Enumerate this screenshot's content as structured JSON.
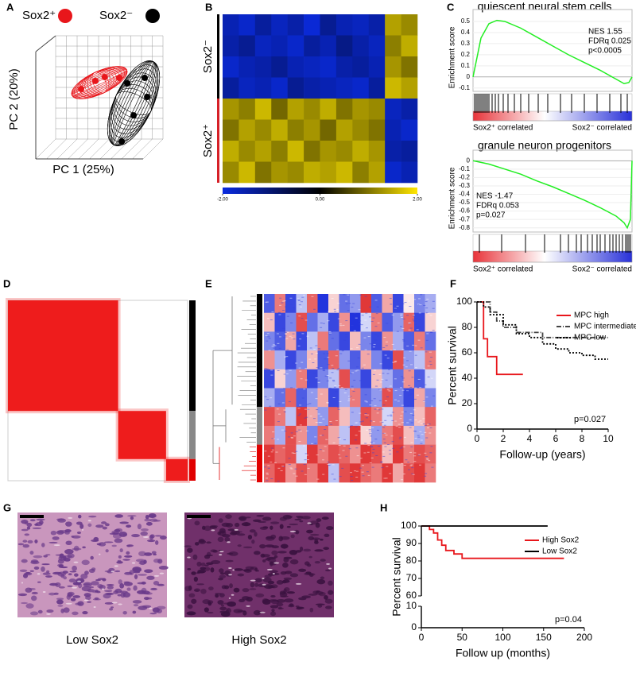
{
  "chart_data": [
    {
      "panel": "A",
      "type": "scatter",
      "x_label": "PC 1 (25%)",
      "y_label": "PC 2 (20%)",
      "xlim": [
        -230,
        230
      ],
      "ylim": [
        -230,
        230
      ],
      "series": [
        {
          "name": "Sox2⁺",
          "color": "#e8161b",
          "x": [
            -92,
            -33,
            6,
            66
          ],
          "values": [
            10,
            43,
            59,
            56
          ]
        },
        {
          "name": "Sox2⁻",
          "color": "#000000",
          "x": [
            99,
            171,
            181,
            125,
            76
          ],
          "values": [
            33,
            56,
            -23,
            -99,
            -207
          ]
        }
      ]
    },
    {
      "panel": "B",
      "type": "heatmap",
      "clim": [
        -2,
        2
      ],
      "colors": [
        "#0a2be0",
        "#000000",
        "#ffe600"
      ],
      "row_groups": [
        {
          "label": "Sox2⁻",
          "rows": 4,
          "color": "#000000"
        },
        {
          "label": "Sox2⁺",
          "rows": 4,
          "color": "#d62027"
        }
      ],
      "matrix": [
        [
          -1.6,
          -1.8,
          -1.4,
          -1.7,
          -1.5,
          -1.9,
          -1.3,
          -1.6,
          -1.7,
          -1.5,
          1.4,
          1.2
        ],
        [
          -1.5,
          -1.3,
          -1.7,
          -1.6,
          -1.8,
          -1.4,
          -1.6,
          -1.2,
          -1.5,
          -1.7,
          1.1,
          1.5
        ],
        [
          -1.8,
          -1.6,
          -1.5,
          -1.3,
          -1.6,
          -1.7,
          -1.8,
          -1.5,
          -1.4,
          -1.6,
          1.3,
          1.0
        ],
        [
          -1.4,
          -1.7,
          -1.6,
          -1.8,
          -1.3,
          -1.5,
          -1.6,
          -1.7,
          -1.8,
          -1.4,
          1.6,
          1.4
        ],
        [
          1.3,
          1.1,
          1.6,
          0.9,
          1.4,
          1.2,
          1.5,
          1.0,
          1.3,
          1.2,
          -1.7,
          -1.5
        ],
        [
          1.0,
          1.4,
          1.2,
          1.5,
          1.1,
          1.3,
          0.9,
          1.4,
          1.2,
          1.0,
          -1.6,
          -1.8
        ],
        [
          1.5,
          1.2,
          1.4,
          1.1,
          1.6,
          1.0,
          1.3,
          1.2,
          1.5,
          1.3,
          -1.5,
          -1.4
        ],
        [
          1.2,
          1.6,
          1.0,
          1.3,
          1.2,
          1.5,
          1.4,
          1.6,
          1.1,
          1.4,
          -1.8,
          -1.6
        ]
      ],
      "colorbar_ticks": [
        {
          "value": -2,
          "label": "-2.00"
        },
        {
          "value": 0,
          "label": "0.00"
        },
        {
          "value": 2,
          "label": "2.00"
        }
      ]
    },
    {
      "panel": "C",
      "type": "enrichment",
      "title": "quiescent neural stem cells",
      "y_label": "Enrichment score",
      "color": "#22ee22",
      "xlim": [
        0,
        1
      ],
      "ylim": [
        -0.13,
        0.55
      ],
      "yticks": [
        0.5,
        0.4,
        0.3,
        0.2,
        0.1,
        0,
        -0.1
      ],
      "x": [
        0,
        0.05,
        0.1,
        0.15,
        0.2,
        0.3,
        0.4,
        0.5,
        0.6,
        0.7,
        0.8,
        0.9,
        0.95,
        0.98,
        1.0
      ],
      "values": [
        0,
        0.35,
        0.48,
        0.51,
        0.5,
        0.44,
        0.36,
        0.28,
        0.2,
        0.13,
        0.06,
        -0.02,
        -0.06,
        -0.05,
        0
      ],
      "annotations": [
        "NES 1.55",
        "FDRq 0.025",
        "p<0.0005"
      ],
      "hits": [
        0.01,
        0.02,
        0.03,
        0.04,
        0.05,
        0.06,
        0.07,
        0.08,
        0.09,
        0.1,
        0.12,
        0.14,
        0.16,
        0.19,
        0.22,
        0.26,
        0.3,
        0.35,
        0.41,
        0.47,
        0.55,
        0.62,
        0.7,
        0.78,
        0.86,
        0.93,
        0.97
      ],
      "low_label": "Sox2⁺ correlated",
      "high_label": "Sox2⁻ correlated"
    },
    {
      "type": "enrichment",
      "title": "granule neuron progenitors",
      "y_label": "Enrichment score",
      "color": "#22ee22",
      "xlim": [
        0,
        1
      ],
      "ylim": [
        -0.85,
        0.05
      ],
      "yticks": [
        0,
        -0.1,
        -0.2,
        -0.3,
        -0.4,
        -0.5,
        -0.6,
        -0.7,
        -0.8
      ],
      "x": [
        0,
        0.1,
        0.2,
        0.3,
        0.4,
        0.5,
        0.6,
        0.7,
        0.8,
        0.9,
        0.95,
        0.97,
        0.99,
        1.0
      ],
      "values": [
        0,
        -0.04,
        -0.1,
        -0.16,
        -0.24,
        -0.31,
        -0.39,
        -0.47,
        -0.56,
        -0.66,
        -0.74,
        -0.8,
        -0.7,
        0
      ],
      "annotations": [
        "NES -1.47",
        "FDRq 0.053",
        "p=0.027"
      ],
      "hits": [
        0.04,
        0.18,
        0.33,
        0.45,
        0.55,
        0.6,
        0.65,
        0.68,
        0.72,
        0.75,
        0.78,
        0.8,
        0.83,
        0.86,
        0.88,
        0.9,
        0.92,
        0.94,
        0.96,
        0.97,
        0.98,
        0.99
      ],
      "low_label": "Sox2⁺ correlated",
      "high_label": "Sox2⁻ correlated"
    },
    {
      "panel": "D",
      "type": "consensus",
      "color": "#ee1c1c",
      "clusters": [
        {
          "size": 46,
          "color": "#000000"
        },
        {
          "size": 20,
          "color": "#888888"
        },
        {
          "size": 9,
          "color": "#e00000"
        }
      ]
    },
    {
      "panel": "E",
      "type": "clustered_heatmap",
      "clim": [
        -1,
        1
      ],
      "colors": [
        "#2233dd",
        "#ffffff",
        "#dd2222"
      ],
      "row_groups": [
        {
          "rows": 6,
          "color": "#000000"
        },
        {
          "rows": 2,
          "color": "#888888"
        },
        {
          "rows": 2,
          "color": "#e00000"
        }
      ],
      "matrix": [
        [
          -0.8,
          0.6,
          -0.9,
          -0.3,
          0.7,
          -1,
          0.2,
          -0.7,
          -0.5,
          0.9,
          -0.8,
          0.4,
          -0.9,
          0.1,
          -0.6,
          -0.4
        ],
        [
          0.3,
          -0.9,
          -0.6,
          0.8,
          -0.7,
          -0.4,
          -0.9,
          0.5,
          -1,
          -0.2,
          0.6,
          -0.8,
          -0.5,
          0.7,
          -0.9,
          0.2
        ],
        [
          -0.6,
          -0.8,
          0.4,
          -0.9,
          -0.3,
          0.6,
          -0.7,
          -0.9,
          0.3,
          -0.6,
          -0.9,
          0.5,
          -0.4,
          -0.8,
          0.6,
          -0.7
        ],
        [
          0.5,
          -0.4,
          -0.9,
          -0.6,
          0.3,
          -0.8,
          0.7,
          -0.5,
          -0.8,
          0.4,
          -0.6,
          -0.9,
          0.8,
          -0.5,
          -0.3,
          0.6
        ],
        [
          -0.9,
          0.2,
          -0.5,
          0.6,
          -0.9,
          -0.6,
          -0.3,
          0.8,
          -0.6,
          -0.9,
          0.3,
          -0.4,
          -0.7,
          0.5,
          -0.8,
          -0.2
        ],
        [
          -0.4,
          -0.7,
          0.7,
          -0.8,
          -0.5,
          0.4,
          -0.9,
          -0.4,
          0.6,
          -0.7,
          -0.5,
          0.8,
          -0.6,
          -0.9,
          0.4,
          -0.6
        ],
        [
          0.8,
          0.6,
          -0.3,
          0.9,
          0.4,
          -0.5,
          0.7,
          0.3,
          -0.4,
          0.8,
          0.6,
          -0.2,
          0.5,
          -0.6,
          0.3,
          0.7
        ],
        [
          0.6,
          -0.4,
          0.8,
          0.5,
          -0.6,
          0.7,
          0.4,
          -0.3,
          0.9,
          0.2,
          -0.5,
          0.6,
          0.8,
          0.3,
          -0.4,
          0.5
        ],
        [
          0.9,
          0.7,
          0.8,
          -0.2,
          0.9,
          0.6,
          0.8,
          0.7,
          0.5,
          0.9,
          0.8,
          0.3,
          0.9,
          0.6,
          0.8,
          0.7
        ],
        [
          0.7,
          0.9,
          0.5,
          0.8,
          0.6,
          0.9,
          -0.3,
          0.8,
          0.9,
          0.7,
          0.6,
          0.9,
          0.4,
          0.8,
          0.9,
          0.6
        ]
      ]
    },
    {
      "panel": "F",
      "type": "survival",
      "x_label": "Follow-up (years)",
      "y_label": "Percent survival",
      "annotation": "p=0.027",
      "xlim": [
        0,
        10
      ],
      "ylim": [
        0,
        100
      ],
      "xticks": [
        0,
        2,
        4,
        6,
        8,
        10
      ],
      "yticks": [
        0,
        20,
        40,
        60,
        80,
        100
      ],
      "series": [
        {
          "name": "MPC high",
          "color": "#e8161b",
          "dash": "none",
          "x": [
            0,
            0.5,
            0.5,
            0.8,
            0.8,
            1.5,
            1.5,
            3.5
          ],
          "values": [
            100,
            100,
            71,
            71,
            57,
            57,
            43,
            43
          ]
        },
        {
          "name": "MPC intermediate",
          "color": "#444444",
          "dash": "6 2 1 2",
          "x": [
            0,
            1,
            1,
            1.5,
            1.5,
            2,
            2,
            3,
            3,
            5,
            5,
            10
          ],
          "values": [
            100,
            100,
            92,
            92,
            85,
            85,
            80,
            80,
            76,
            76,
            72,
            72
          ]
        },
        {
          "name": "MPC low",
          "color": "#000000",
          "dash": "2 2",
          "x": [
            0,
            0.5,
            0.5,
            1,
            1,
            2,
            2,
            3,
            3,
            4,
            4,
            5,
            5,
            6,
            6,
            7,
            7,
            8,
            8,
            9,
            9,
            10
          ],
          "values": [
            100,
            100,
            96,
            96,
            90,
            90,
            82,
            82,
            75,
            75,
            72,
            72,
            67,
            67,
            63,
            63,
            60,
            60,
            58,
            58,
            55,
            55
          ]
        }
      ]
    },
    {
      "panel": "G",
      "type": "images",
      "captions": [
        "Low Sox2",
        "High Sox2"
      ]
    },
    {
      "panel": "H",
      "type": "survival",
      "x_label": "Follow up (months)",
      "y_label": "Percent survival",
      "annotation": "p=0.04",
      "xlim": [
        0,
        200
      ],
      "ylim": [
        0,
        100
      ],
      "y_break": [
        10,
        60
      ],
      "xticks": [
        0,
        50,
        100,
        150,
        200
      ],
      "yticks": [
        0,
        10,
        60,
        70,
        80,
        90,
        100
      ],
      "series": [
        {
          "name": "High Sox2",
          "color": "#e8161b",
          "dash": "none",
          "x": [
            0,
            10,
            10,
            15,
            15,
            20,
            20,
            25,
            25,
            30,
            30,
            40,
            40,
            50,
            50,
            175
          ],
          "values": [
            100,
            100,
            98,
            98,
            96,
            96,
            92,
            92,
            89,
            89,
            86,
            86,
            84,
            84,
            81.5,
            81.5
          ]
        },
        {
          "name": "Low Sox2",
          "color": "#000000",
          "dash": "none",
          "x": [
            0,
            155
          ],
          "values": [
            100,
            100
          ]
        }
      ]
    }
  ]
}
